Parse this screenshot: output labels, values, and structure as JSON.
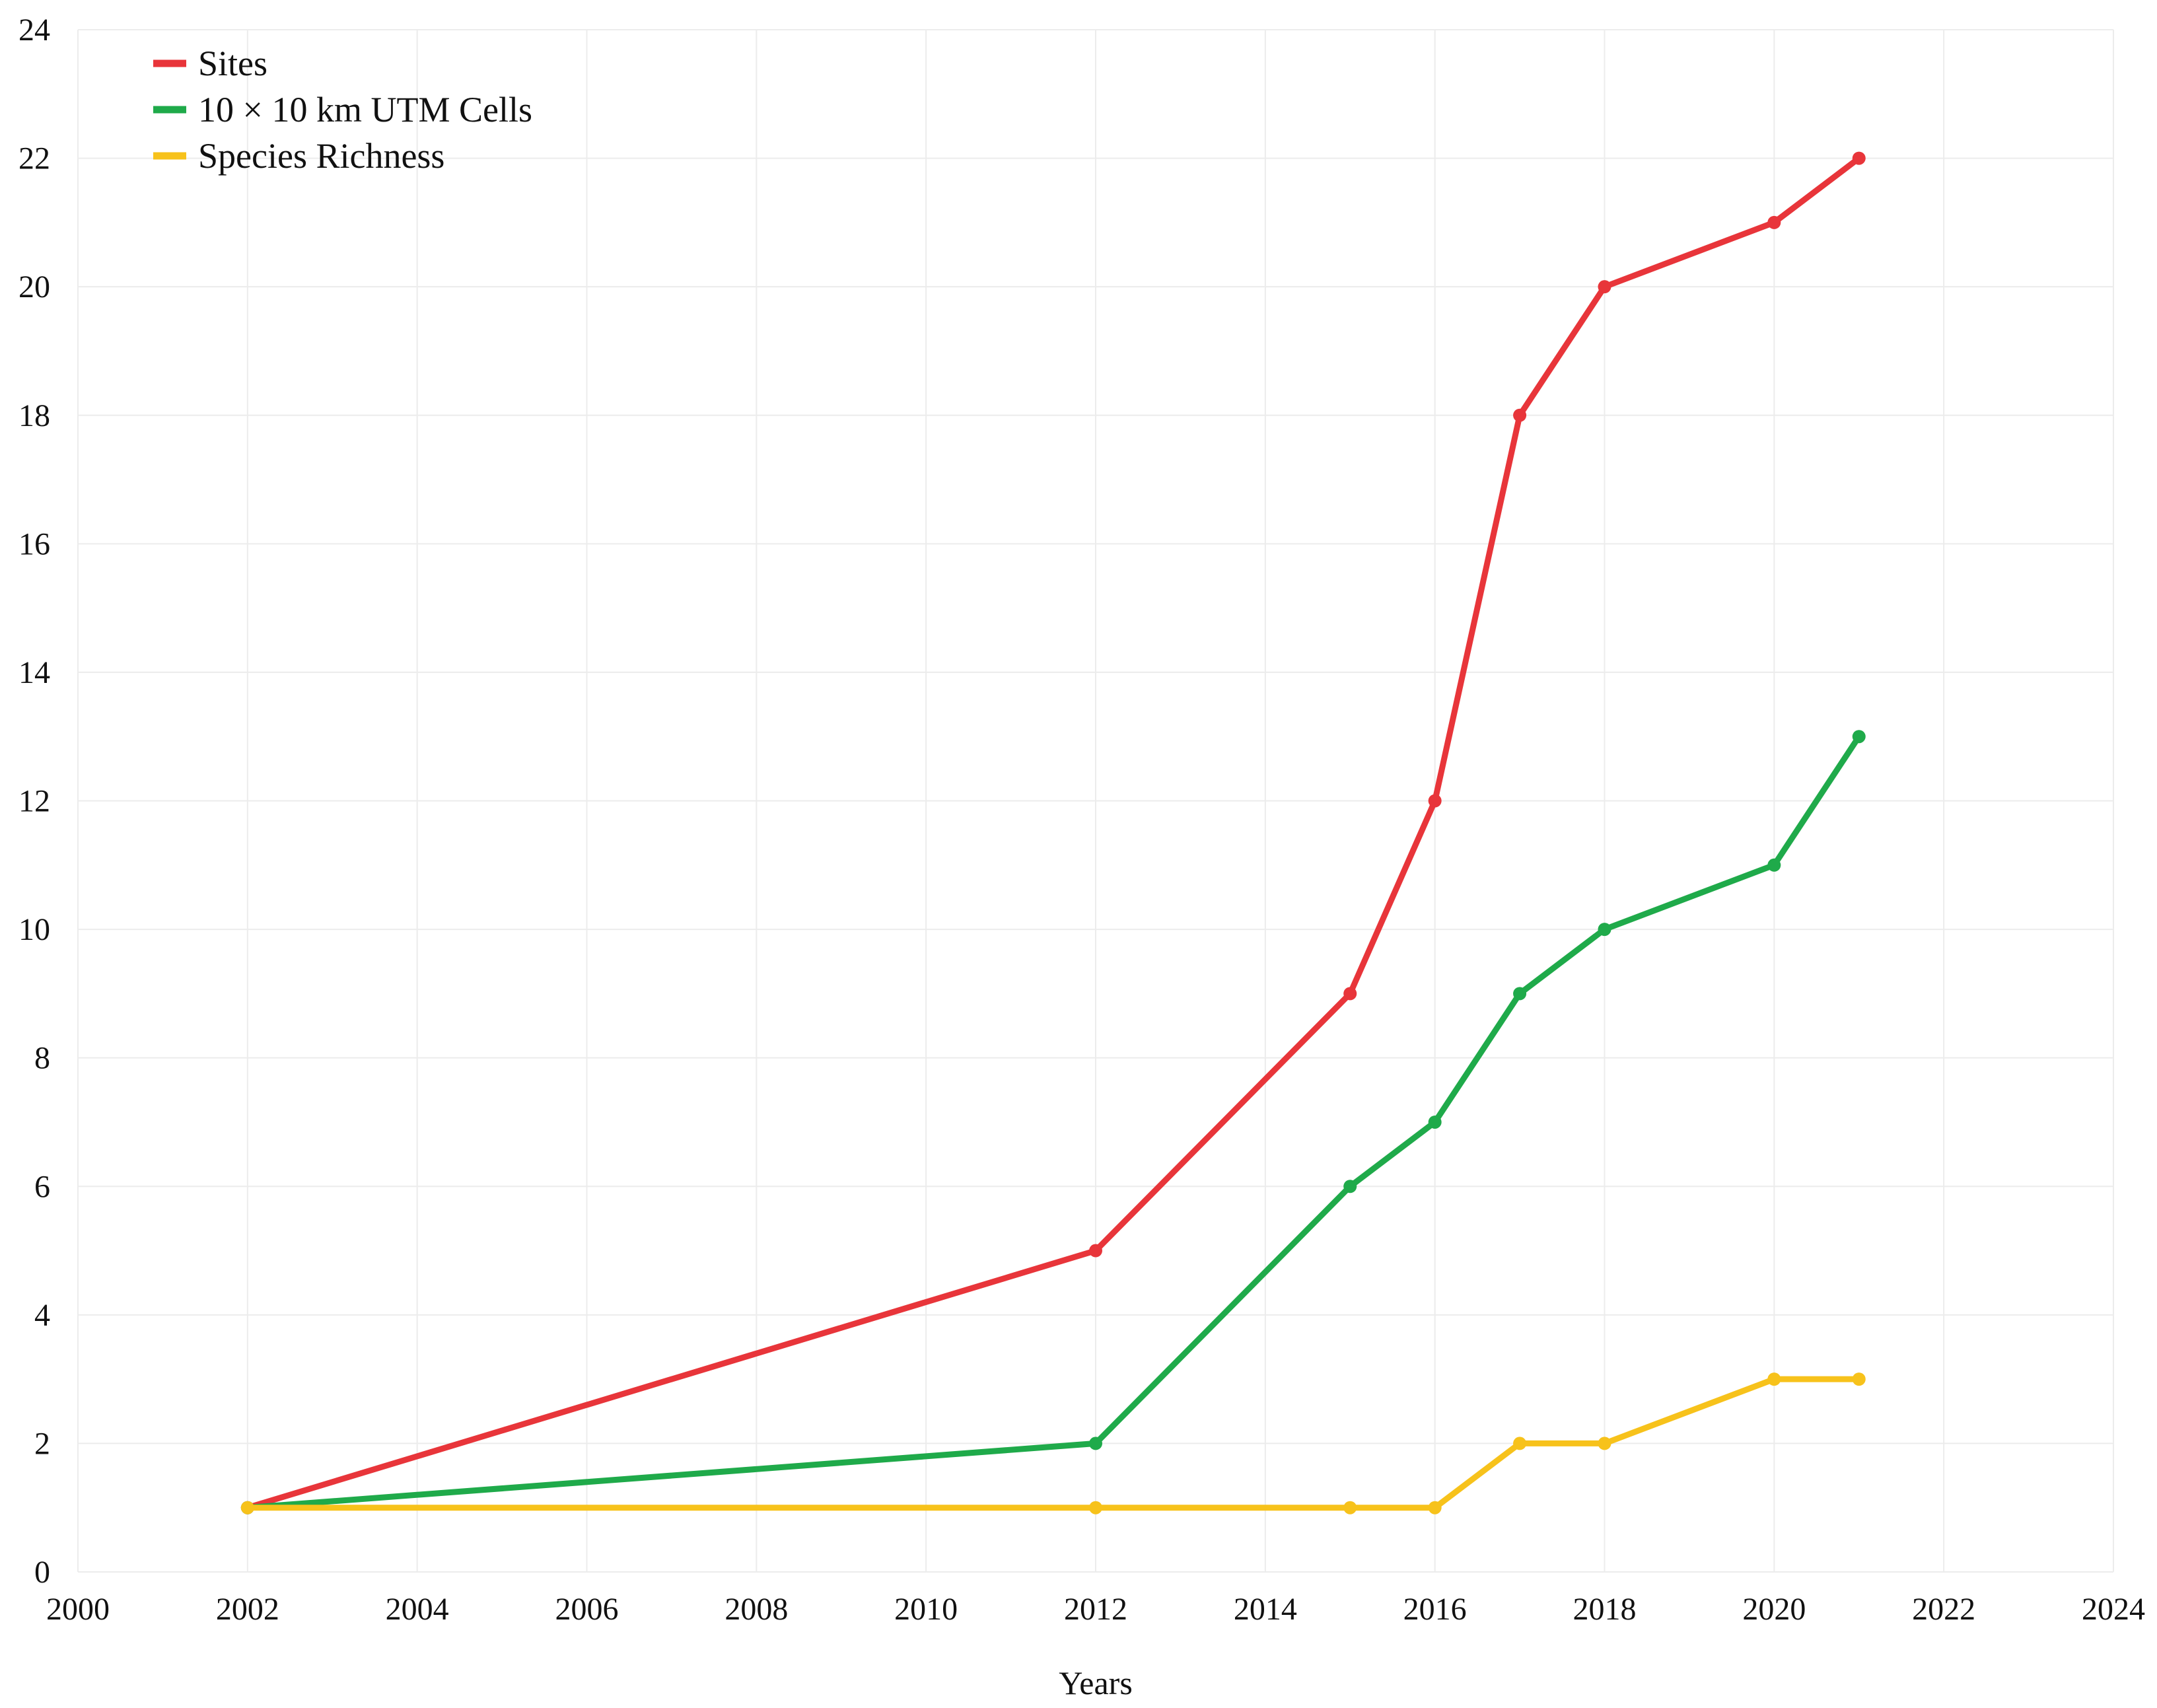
{
  "chart_data": {
    "type": "line",
    "title": "",
    "xlabel": "Years",
    "ylabel": "",
    "xlim": [
      2000,
      2024
    ],
    "ylim": [
      0,
      24
    ],
    "x_ticks": [
      2000,
      2002,
      2004,
      2006,
      2008,
      2010,
      2012,
      2014,
      2016,
      2018,
      2020,
      2022,
      2024
    ],
    "y_ticks": [
      0,
      2,
      4,
      6,
      8,
      10,
      12,
      14,
      16,
      18,
      20,
      22,
      24
    ],
    "grid": true,
    "legend_position": "top-left",
    "series": [
      {
        "name": "Sites",
        "color": "#e8353a",
        "x": [
          2002,
          2012,
          2015,
          2016,
          2017,
          2018,
          2020,
          2021
        ],
        "y": [
          1,
          5,
          9,
          12,
          18,
          20,
          21,
          22
        ]
      },
      {
        "name": "10 × 10 km UTM Cells",
        "color": "#1faa4a",
        "x": [
          2002,
          2012,
          2015,
          2016,
          2017,
          2018,
          2020,
          2021
        ],
        "y": [
          1,
          2,
          6,
          7,
          9,
          10,
          11,
          13
        ]
      },
      {
        "name": "Species Richness",
        "color": "#f7c21b",
        "x": [
          2002,
          2012,
          2015,
          2016,
          2017,
          2018,
          2020,
          2021
        ],
        "y": [
          1,
          1,
          1,
          1,
          2,
          2,
          3,
          3
        ]
      }
    ]
  }
}
